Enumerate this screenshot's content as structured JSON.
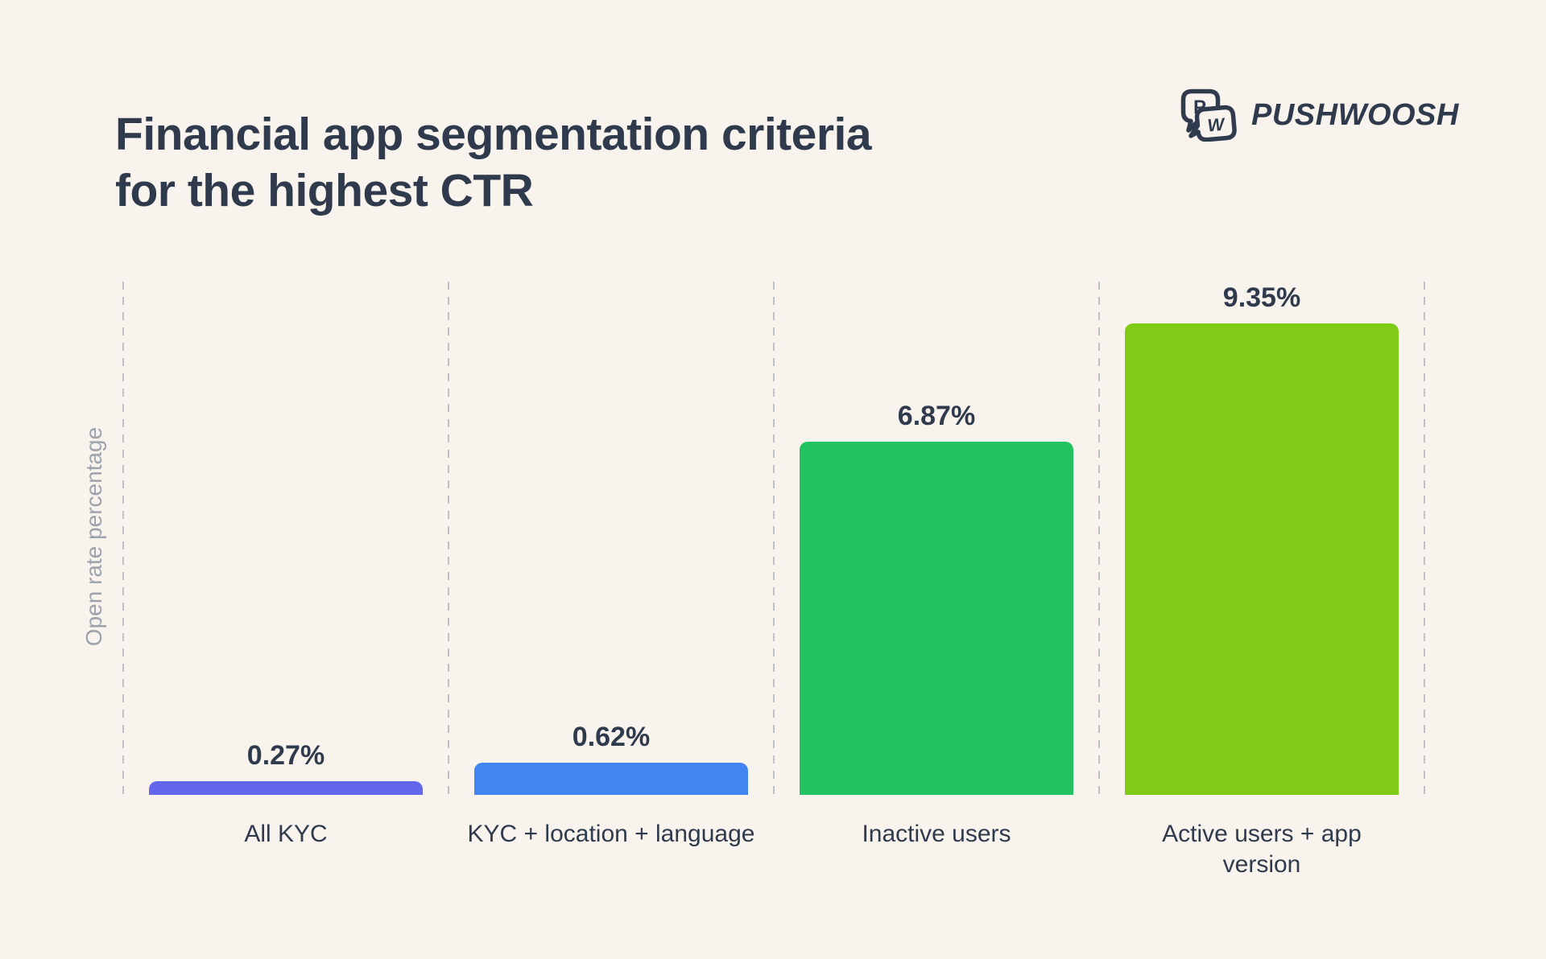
{
  "header": {
    "title_lines": [
      "Financial app segmentation criteria",
      "for the highest CTR"
    ],
    "brand": {
      "name": "PUSHWOOSH",
      "icon_letters": [
        "P",
        "W"
      ]
    }
  },
  "chart_data": {
    "type": "bar",
    "title": "Financial app segmentation criteria for the highest CTR",
    "xlabel": "",
    "ylabel": "Open rate percentage",
    "categories": [
      "All KYC",
      "KYC + location + language",
      "Inactive users",
      "Active users + app version"
    ],
    "category_label_lines": [
      [
        "All KYC"
      ],
      [
        "KYC + location + language"
      ],
      [
        "Inactive users"
      ],
      [
        "Active users + app",
        "version"
      ]
    ],
    "values": [
      0.27,
      0.62,
      6.87,
      9.35
    ],
    "value_labels": [
      "0.27%",
      "0.62%",
      "6.87%",
      "9.35%"
    ],
    "bar_colors": [
      "#6466EB",
      "#4184F2",
      "#23C362",
      "#80CB18"
    ],
    "ylim": [
      0,
      10
    ],
    "grid": "dashed vertical separators between columns",
    "legend": "none",
    "value_label_position": "above bars",
    "axis_ticks": "none"
  },
  "colors": {
    "background": "#F9F3ED",
    "text_dark": "#2F3B4D",
    "axis_text": "#9DA3AC",
    "grid_line": "#BCC1C9"
  }
}
